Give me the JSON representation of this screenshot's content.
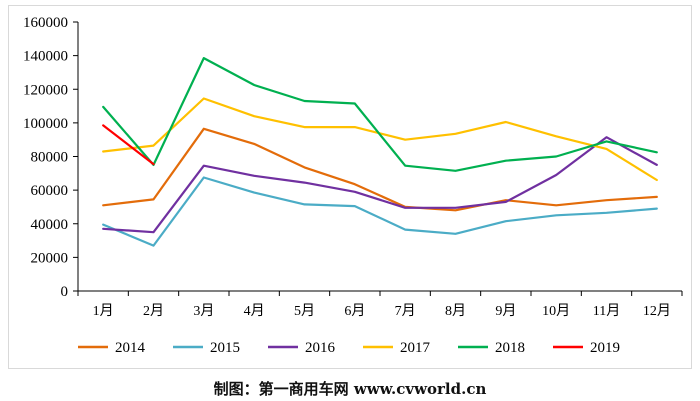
{
  "chart_data": {
    "type": "line",
    "categories": [
      "1月",
      "2月",
      "3月",
      "4月",
      "5月",
      "6月",
      "7月",
      "8月",
      "9月",
      "10月",
      "11月",
      "12月"
    ],
    "ylim": [
      0,
      160000
    ],
    "yticks": [
      0,
      20000,
      40000,
      60000,
      80000,
      100000,
      120000,
      140000,
      160000
    ],
    "grid": false,
    "legend": "bottom",
    "series": [
      {
        "name": "2014",
        "color": "#e36c0a",
        "values": [
          51000,
          54500,
          96500,
          87500,
          73500,
          63500,
          50000,
          48000,
          54000,
          51000,
          54000,
          56000
        ]
      },
      {
        "name": "2015",
        "color": "#4bacc6",
        "values": [
          39500,
          27000,
          67500,
          58500,
          51500,
          50500,
          36500,
          34000,
          41500,
          45000,
          46500,
          49000
        ]
      },
      {
        "name": "2016",
        "color": "#7030a0",
        "values": [
          37000,
          35000,
          74500,
          68500,
          64500,
          59000,
          49500,
          49500,
          53000,
          69000,
          91500,
          75000
        ]
      },
      {
        "name": "2017",
        "color": "#ffc000",
        "values": [
          83000,
          86500,
          114500,
          104000,
          97500,
          97500,
          90000,
          93500,
          100500,
          92000,
          84500,
          66000
        ]
      },
      {
        "name": "2018",
        "color": "#00b050",
        "values": [
          109500,
          75000,
          138500,
          122500,
          113000,
          111500,
          74500,
          71500,
          77500,
          80000,
          89000,
          82500
        ]
      },
      {
        "name": "2019",
        "color": "#ff0000",
        "values": [
          98500,
          75500,
          null,
          null,
          null,
          null,
          null,
          null,
          null,
          null,
          null,
          null
        ]
      }
    ]
  },
  "caption": "制图：第一商用车网 www.cvworld.cn"
}
